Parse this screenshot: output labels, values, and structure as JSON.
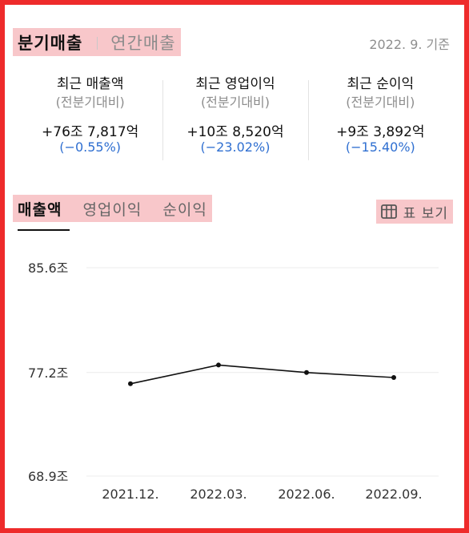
{
  "period_tabs": [
    {
      "label": "분기매출",
      "active": true
    },
    {
      "label": "연간매출",
      "active": false
    }
  ],
  "reference_date": "2022. 9. 기준",
  "summary": [
    {
      "title": "최근 매출액",
      "subtitle": "(전분기대비)",
      "value": "+76조 7,817억",
      "change": "(−0.55%)"
    },
    {
      "title": "최근 영업이익",
      "subtitle": "(전분기대비)",
      "value": "+10조 8,520억",
      "change": "(−23.02%)"
    },
    {
      "title": "최근 순이익",
      "subtitle": "(전분기대비)",
      "value": "+9조 3,892억",
      "change": "(−15.40%)"
    }
  ],
  "metric_tabs": [
    {
      "label": "매출액",
      "active": true
    },
    {
      "label": "영업이익",
      "active": false
    },
    {
      "label": "순이익",
      "active": false
    }
  ],
  "table_view_button": {
    "icon": "table-grid-icon",
    "label": "표 보기"
  },
  "colors": {
    "accent_change": "#2f6fd1",
    "highlight": "#f8c7ca",
    "frame": "#ee2b2b"
  },
  "chart_data": {
    "type": "line",
    "categories": [
      "2021.12.",
      "2022.03.",
      "2022.06.",
      "2022.09."
    ],
    "series": [
      {
        "values": [
          76.3,
          77.8,
          77.2,
          76.8
        ]
      }
    ],
    "ylim": [
      68.9,
      85.6
    ],
    "yticks": [
      85.6,
      77.2,
      68.9
    ],
    "ytick_labels": [
      "85.6조",
      "77.2조",
      "68.9조"
    ],
    "grid": true
  }
}
